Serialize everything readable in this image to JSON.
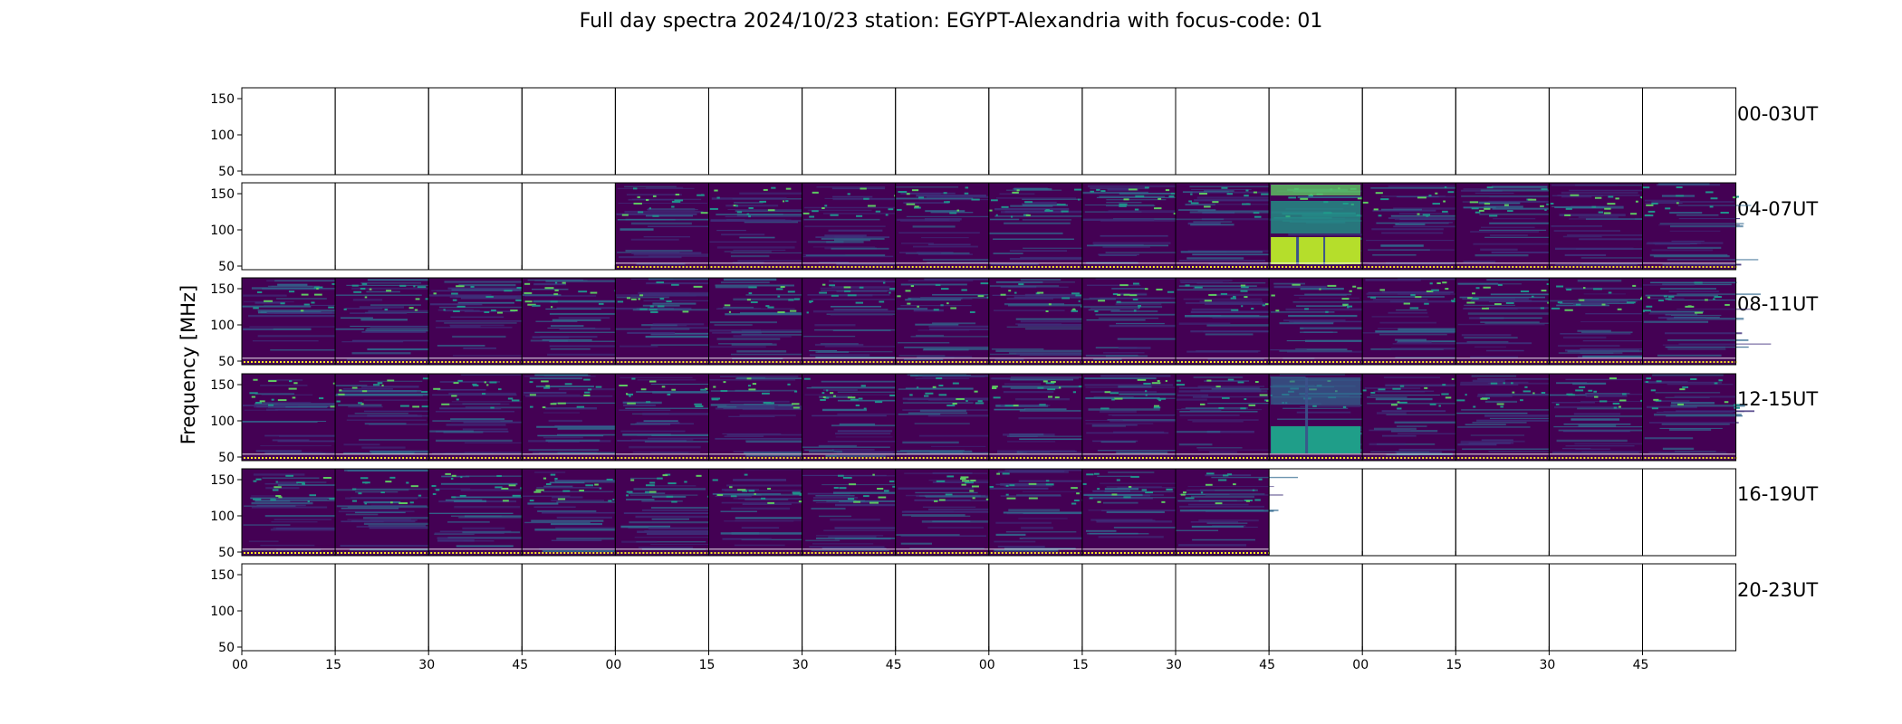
{
  "chart_data": {
    "type": "heatmap",
    "title": "Full day spectra 2024/10/23 station: EGYPT-Alexandria with focus-code: 01",
    "xlabel": "",
    "ylabel": "Frequency [MHz]",
    "ylim": [
      45,
      165
    ],
    "y_ticks": [
      "50",
      "100",
      "150"
    ],
    "x_ticks": [
      "00",
      "15",
      "30",
      "45",
      "00",
      "15",
      "30",
      "45",
      "00",
      "15",
      "30",
      "45",
      "00",
      "15",
      "30",
      "45"
    ],
    "x_minutes_per_panel": 15,
    "colormap": [
      "#440154",
      "#3b528b",
      "#21918c",
      "#5ec962",
      "#fde725"
    ],
    "rows": [
      {
        "label": "00-03UT",
        "panels": [
          0,
          0,
          0,
          0,
          0,
          0,
          0,
          0,
          0,
          0,
          0,
          0,
          0,
          0,
          0,
          0
        ]
      },
      {
        "label": "04-07UT",
        "panels": [
          0,
          0,
          0,
          0,
          1,
          1,
          1,
          1,
          1,
          1,
          1,
          3,
          1,
          1,
          1,
          1
        ]
      },
      {
        "label": "08-11UT",
        "panels": [
          1,
          1,
          1,
          1,
          1,
          1,
          1,
          1,
          1,
          1,
          1,
          1,
          1,
          1,
          1,
          1
        ]
      },
      {
        "label": "12-15UT",
        "panels": [
          1,
          1,
          1,
          1,
          1,
          1,
          1,
          1,
          1,
          1,
          1,
          2,
          1,
          1,
          1,
          1
        ]
      },
      {
        "label": "16-19UT",
        "panels": [
          1,
          1,
          1,
          1,
          1,
          1,
          1,
          1,
          1,
          1,
          1,
          0,
          0,
          0,
          0,
          0
        ]
      },
      {
        "label": "20-23UT",
        "panels": [
          0,
          0,
          0,
          0,
          0,
          0,
          0,
          0,
          0,
          0,
          0,
          0,
          0,
          0,
          0,
          0
        ]
      }
    ]
  }
}
